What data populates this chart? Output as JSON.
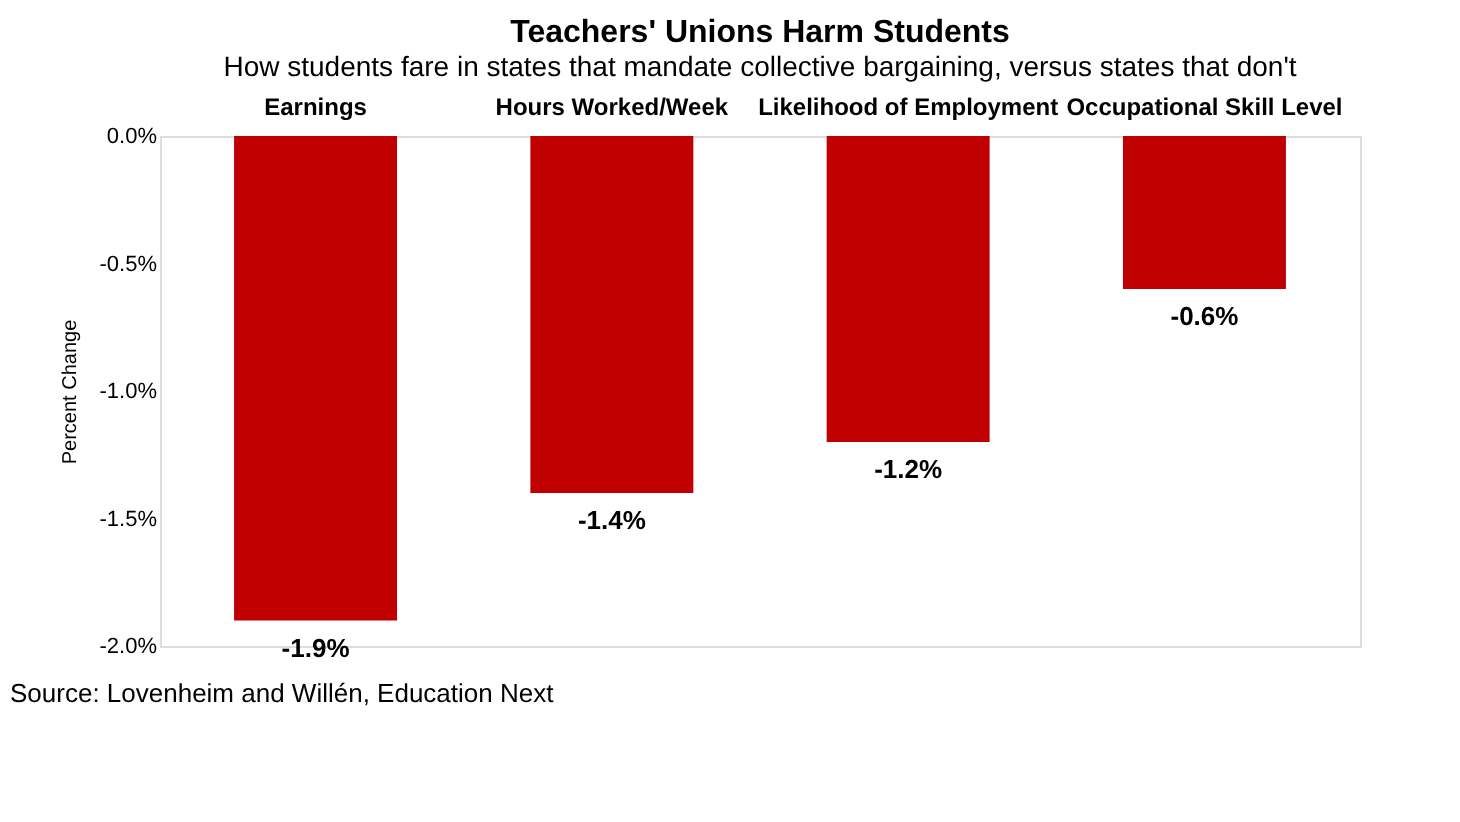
{
  "chart_data": {
    "type": "bar",
    "title": "Teachers' Unions Harm Students",
    "subtitle": "How students fare in states that mandate collective bargaining, versus states that don't",
    "ylabel": "Percent Change",
    "categories": [
      "Earnings",
      "Hours Worked/Week",
      "Likelihood of Employment",
      "Occupational Skill Level"
    ],
    "values": [
      -1.9,
      -1.4,
      -1.2,
      -0.6
    ],
    "color": "#c00000",
    "value_labels": [
      "-1.9%",
      "-1.4%",
      "-1.2%",
      "-0.6%"
    ],
    "ylim": [
      -2.0,
      0.0
    ],
    "yticks": [
      {
        "value": -2.0,
        "label": "-2.0%"
      },
      {
        "value": -1.5,
        "label": "-1.5%"
      },
      {
        "value": -1.0,
        "label": "-1.0%"
      },
      {
        "value": -0.5,
        "label": "-0.5%"
      },
      {
        "value": 0.0,
        "label": "0.0%"
      }
    ],
    "grid": false,
    "annotations": [
      "Source: Lovenheim and Willén, Education Next"
    ]
  }
}
